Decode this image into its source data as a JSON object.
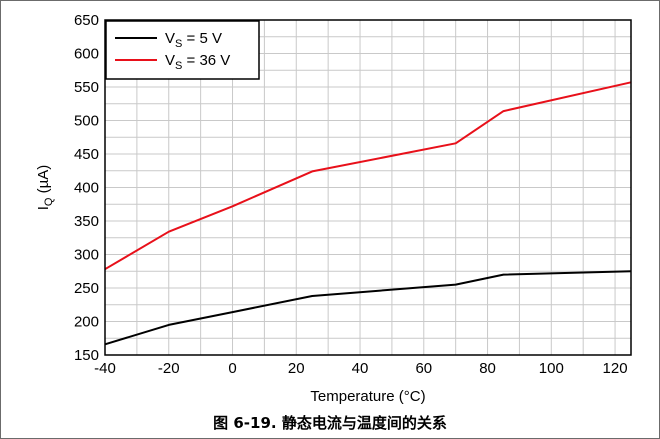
{
  "caption": {
    "label": "图 6-19.",
    "text": "静态电流与温度间的关系"
  },
  "chart_data": {
    "type": "line",
    "xlabel": "Temperature (°C)",
    "ylabel": {
      "main": "I",
      "sub": "Q",
      "unit": " (µA)"
    },
    "xlim": [
      -40,
      125
    ],
    "ylim": [
      150,
      650
    ],
    "x_ticks": [
      -40,
      -20,
      0,
      20,
      40,
      60,
      80,
      100,
      120
    ],
    "y_ticks": [
      150,
      200,
      250,
      300,
      350,
      400,
      450,
      500,
      550,
      600,
      650
    ],
    "x_minor_step": 10,
    "y_minor_step": 25,
    "grid": true,
    "legend_position": "top-left",
    "series": [
      {
        "legend": {
          "main": "V",
          "sub": "S",
          "rest": " = 5 V"
        },
        "color": "#000000",
        "points": [
          [
            -40,
            166
          ],
          [
            -20,
            195
          ],
          [
            0,
            214
          ],
          [
            25,
            238
          ],
          [
            70,
            255
          ],
          [
            85,
            270
          ],
          [
            125,
            275
          ]
        ]
      },
      {
        "legend": {
          "main": "V",
          "sub": "S",
          "rest": " = 36 V"
        },
        "color": "#e8101a",
        "points": [
          [
            -40,
            278
          ],
          [
            -20,
            334
          ],
          [
            0,
            372
          ],
          [
            25,
            424
          ],
          [
            70,
            466
          ],
          [
            85,
            514
          ],
          [
            125,
            557
          ]
        ]
      }
    ]
  }
}
